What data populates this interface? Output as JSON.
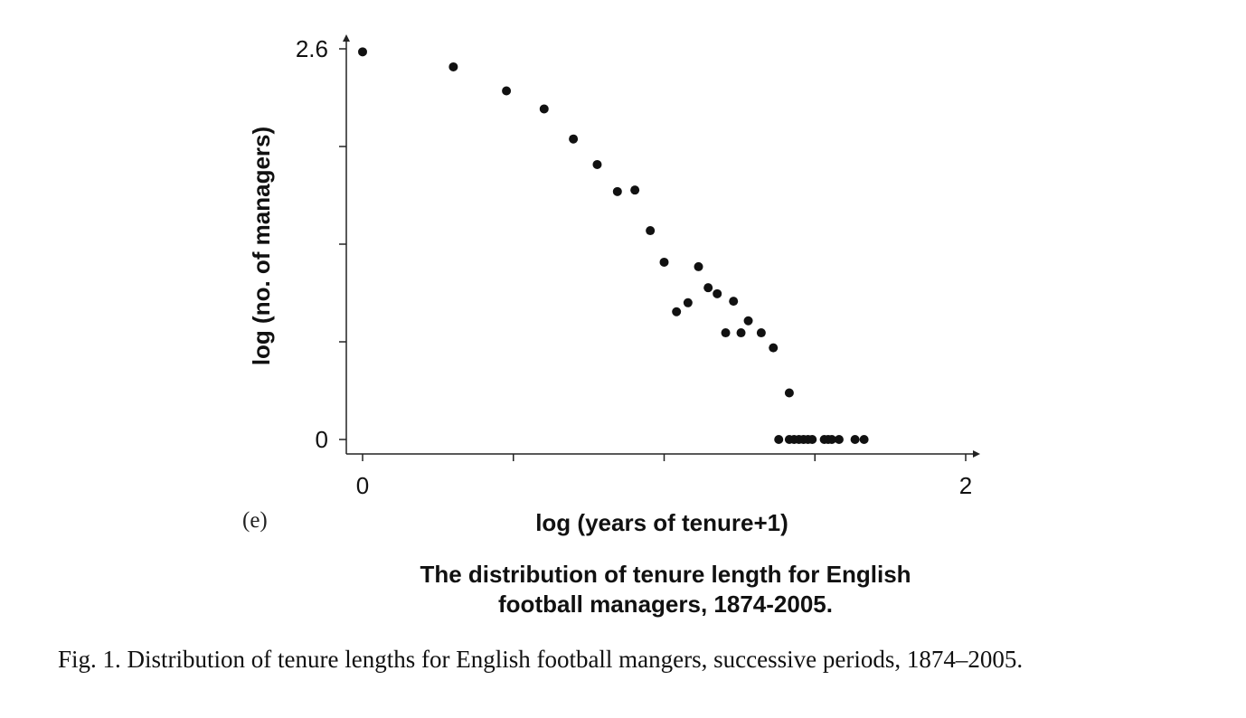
{
  "panel_label": "(e)",
  "caption": "Fig. 1.  Distribution of tenure lengths for English football mangers, successive periods, 1874–2005.",
  "chart_data": {
    "type": "scatter",
    "title_lines": [
      "The distribution of tenure length for English",
      "football managers, 1874-2005."
    ],
    "xlabel": "log (years of tenure+1)",
    "ylabel": "log (no. of managers)",
    "xlim": [
      0,
      2
    ],
    "ylim": [
      0,
      2.6
    ],
    "x_tick_labels": [
      {
        "value": 0,
        "label": "0"
      },
      {
        "value": 2,
        "label": "2"
      }
    ],
    "x_minor_ticks": [
      0.5,
      1,
      1.5
    ],
    "y_tick_labels": [
      {
        "value": 0,
        "label": "0"
      },
      {
        "value": 2.6,
        "label": "2.6"
      }
    ],
    "y_minor_ticks": [
      0.65,
      1.3,
      1.95
    ],
    "grid": false,
    "series": [
      {
        "color": "#111111",
        "points": [
          [
            0.0,
            2.58
          ],
          [
            0.301,
            2.48
          ],
          [
            0.477,
            2.32
          ],
          [
            0.602,
            2.2
          ],
          [
            0.699,
            2.0
          ],
          [
            0.778,
            1.83
          ],
          [
            0.845,
            1.65
          ],
          [
            0.903,
            1.66
          ],
          [
            0.954,
            1.39
          ],
          [
            1.0,
            1.18
          ],
          [
            1.041,
            0.85
          ],
          [
            1.079,
            0.91
          ],
          [
            1.114,
            1.15
          ],
          [
            1.146,
            1.01
          ],
          [
            1.176,
            0.97
          ],
          [
            1.204,
            0.71
          ],
          [
            1.23,
            0.92
          ],
          [
            1.255,
            0.71
          ],
          [
            1.279,
            0.79
          ],
          [
            1.322,
            0.71
          ],
          [
            1.362,
            0.61
          ],
          [
            1.38,
            0.0
          ],
          [
            1.415,
            0.0
          ],
          [
            1.415,
            0.31
          ],
          [
            1.431,
            0.0
          ],
          [
            1.447,
            0.0
          ],
          [
            1.462,
            0.0
          ],
          [
            1.477,
            0.0
          ],
          [
            1.491,
            0.0
          ],
          [
            1.531,
            0.0
          ],
          [
            1.544,
            0.0
          ],
          [
            1.556,
            0.0
          ],
          [
            1.58,
            0.0
          ],
          [
            1.633,
            0.0
          ],
          [
            1.663,
            0.0
          ]
        ]
      }
    ]
  }
}
